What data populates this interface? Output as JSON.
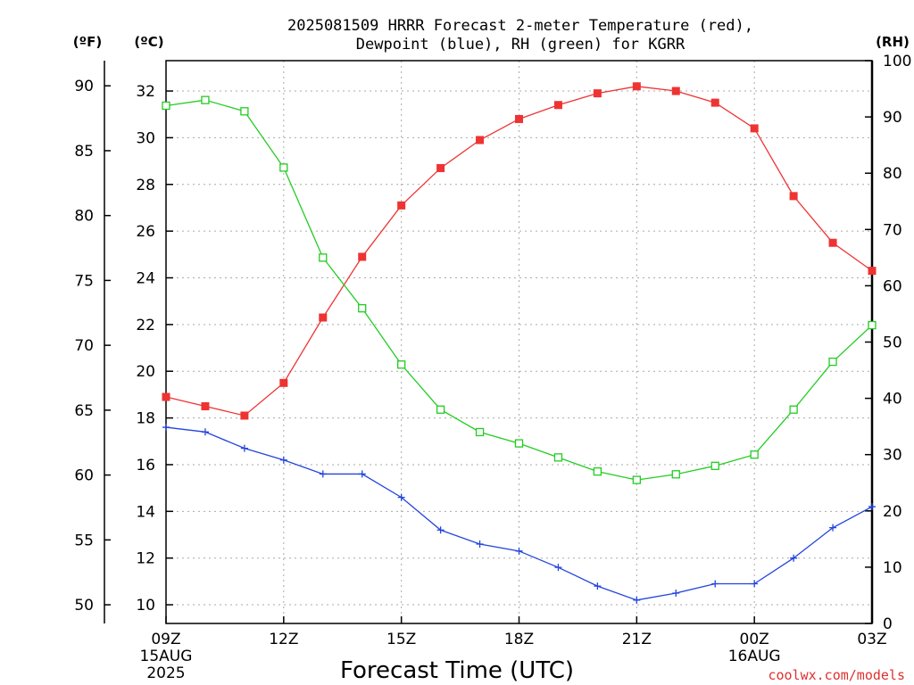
{
  "chart_data": {
    "type": "line",
    "title_line1": "2025081509 HRRR Forecast 2-meter Temperature (red),",
    "title_line2": "Dewpoint (blue), RH (green) for KGRR",
    "xlabel": "Forecast Time (UTC)",
    "unit_f": "(ºF)",
    "unit_c": "(ºC)",
    "unit_rh": "(RH)",
    "credit": "coolwx.com/models",
    "x_hours": [
      9,
      10,
      11,
      12,
      13,
      14,
      15,
      16,
      17,
      18,
      19,
      20,
      21,
      22,
      23,
      24,
      25,
      26,
      27
    ],
    "x_ticks": [
      {
        "hour": 9,
        "label": "09Z",
        "sub1": "15AUG",
        "sub2": "2025"
      },
      {
        "hour": 12,
        "label": "12Z",
        "sub1": "",
        "sub2": ""
      },
      {
        "hour": 15,
        "label": "15Z",
        "sub1": "",
        "sub2": ""
      },
      {
        "hour": 18,
        "label": "18Z",
        "sub1": "",
        "sub2": ""
      },
      {
        "hour": 21,
        "label": "21Z",
        "sub1": "",
        "sub2": ""
      },
      {
        "hour": 24,
        "label": "00Z",
        "sub1": "16AUG",
        "sub2": ""
      },
      {
        "hour": 27,
        "label": "03Z",
        "sub1": "",
        "sub2": ""
      }
    ],
    "celsius_ticks": [
      10,
      12,
      14,
      16,
      18,
      20,
      22,
      24,
      26,
      28,
      30,
      32
    ],
    "fahrenheit_ticks": [
      50,
      55,
      60,
      65,
      70,
      75,
      80,
      85,
      90
    ],
    "rh_ticks": [
      0,
      10,
      20,
      30,
      40,
      50,
      60,
      70,
      80,
      90,
      100
    ],
    "celsius_range": [
      9.2,
      33.3
    ],
    "rh_range": [
      0,
      100
    ],
    "series": [
      {
        "name": "Temperature",
        "color": "#ee3333",
        "marker": "filled-square",
        "axis": "celsius",
        "values": [
          18.9,
          18.5,
          18.1,
          19.5,
          22.3,
          24.9,
          27.1,
          28.7,
          29.9,
          30.8,
          31.4,
          31.9,
          32.2,
          32.0,
          31.5,
          30.4,
          27.5,
          25.5,
          24.3
        ]
      },
      {
        "name": "Dewpoint",
        "color": "#2244dd",
        "marker": "plus",
        "axis": "celsius",
        "values": [
          17.6,
          17.4,
          16.7,
          16.2,
          15.6,
          15.6,
          14.6,
          13.2,
          12.6,
          12.3,
          11.6,
          10.8,
          10.2,
          10.5,
          10.9,
          10.9,
          12.0,
          13.3,
          14.2
        ]
      },
      {
        "name": "RH",
        "color": "#22cc22",
        "marker": "open-square",
        "axis": "rh",
        "values": [
          92,
          93,
          91,
          81,
          65,
          56,
          46,
          38,
          34,
          32,
          29.5,
          27,
          25.5,
          26.5,
          28,
          30,
          38,
          46.5,
          53
        ]
      }
    ],
    "grid": true
  }
}
